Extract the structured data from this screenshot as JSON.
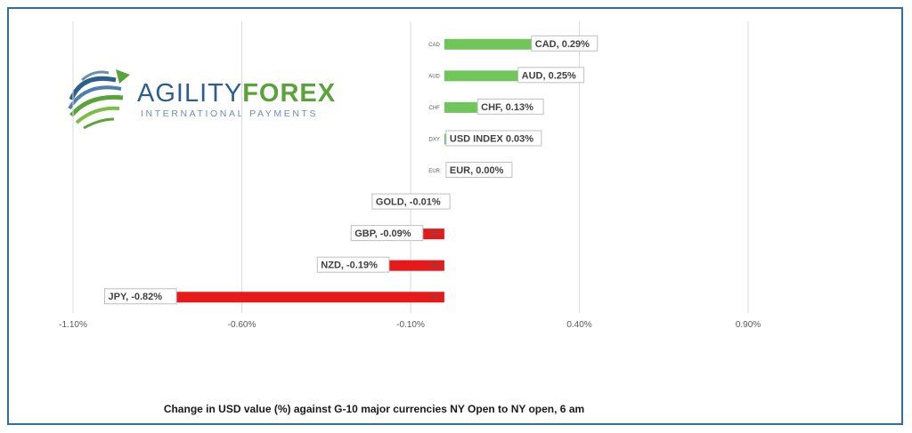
{
  "logo": {
    "brand_part1": "AGILITY",
    "brand_part2": "FOREX",
    "tagline": "INTERNATIONAL PAYMENTS",
    "colors": {
      "blue": "#2e5e8c",
      "green": "#5aa33a"
    }
  },
  "caption": "Change in  USD value (%)  against  G-10 major currencies NY Open to  NY open, 6 am",
  "colors": {
    "positive": "#70c65a",
    "negative": "#e8191a",
    "grid": "#d9d9d9",
    "frame": "#2f6f9f"
  },
  "chart_data": {
    "type": "bar",
    "orientation": "horizontal",
    "categories": [
      "CAD",
      "AUD",
      "CHF",
      "DXY",
      "EUR",
      "GOLD",
      "GBP",
      "NZD",
      "JPY"
    ],
    "values": [
      0.29,
      0.25,
      0.13,
      0.03,
      0.0,
      -0.01,
      -0.09,
      -0.19,
      -0.82
    ],
    "data_labels": [
      "CAD, 0.29%",
      "AUD, 0.25%",
      "CHF, 0.13%",
      "USD INDEX 0.03%",
      "EUR, 0.00%",
      "GOLD, -0.01%",
      "GBP, -0.09%",
      "NZD, -0.19%",
      "JPY, -0.82%"
    ],
    "xlim": [
      -1.1,
      0.9
    ],
    "x_ticks": [
      -1.1,
      -0.6,
      -0.1,
      0.4,
      0.9
    ],
    "x_tick_labels": [
      "-1.10%",
      "-0.60%",
      "-0.10%",
      "0.40%",
      "0.90%"
    ],
    "grid": true,
    "legend": "none"
  }
}
